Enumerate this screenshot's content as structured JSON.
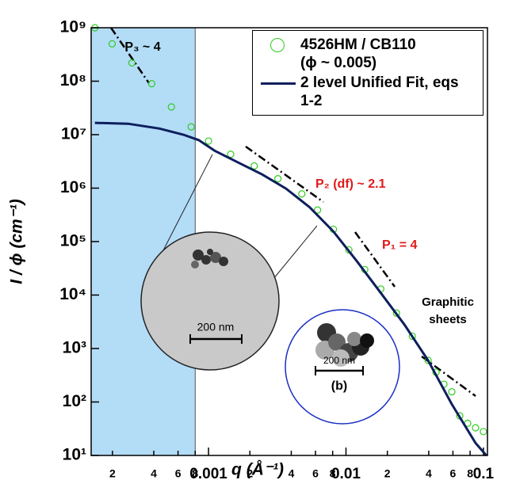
{
  "chart_data": {
    "type": "scatter",
    "x_label": "q (Å⁻¹)",
    "y_label": "I / ϕ (cm⁻¹)",
    "log_x": true,
    "log_y": true,
    "xlim": [
      0.00014,
      0.107
    ],
    "ylim": [
      10,
      1000000000
    ],
    "shade_to": 0.0008,
    "shade_color": "#b3dcf7",
    "legend": "upper right",
    "xticks": [
      {
        "value": 0.0002,
        "label": "2"
      },
      {
        "value": 0.0004,
        "label": "4"
      },
      {
        "value": 0.0006,
        "label": "6"
      },
      {
        "value": 0.0008,
        "label": "8"
      },
      0.001,
      {
        "value": 0.002,
        "label": "2"
      },
      {
        "value": 0.004,
        "label": "4"
      },
      {
        "value": 0.006,
        "label": "6"
      },
      {
        "value": 0.008,
        "label": "8"
      },
      0.01,
      {
        "value": 0.02,
        "label": "2"
      },
      {
        "value": 0.04,
        "label": "4"
      },
      {
        "value": 0.06,
        "label": "6"
      },
      {
        "value": 0.08,
        "label": "8"
      },
      0.1
    ],
    "yticks": [
      {
        "value": 10,
        "label": "10¹"
      },
      {
        "value": 100,
        "label": "10²"
      },
      {
        "value": 1000,
        "label": "10³"
      },
      {
        "value": 10000,
        "label": "10⁴"
      },
      {
        "value": 100000,
        "label": "10⁵"
      },
      {
        "value": 1000000,
        "label": "10⁶"
      },
      {
        "value": 10000000,
        "label": "10⁷"
      },
      {
        "value": 100000000,
        "label": "10⁸"
      },
      {
        "value": 1000000000,
        "label": "10⁹"
      }
    ],
    "series": [
      {
        "name": "4526HM / CB110 (ϕ ~ 0.005)",
        "color": "#2fcc1f",
        "marker": "open-circle",
        "x": [
          0.000149,
          0.000199,
          0.000277,
          0.000386,
          0.000537,
          0.000748,
          0.001,
          0.00145,
          0.00215,
          0.0032,
          0.00477,
          0.00621,
          0.0081,
          0.0105,
          0.0137,
          0.0179,
          0.0233,
          0.0304,
          0.0396,
          0.0452,
          0.0516,
          0.0589,
          0.0673,
          0.0768,
          0.0877,
          0.1
        ],
        "values": [
          1000000000,
          500000000,
          220000000,
          90000000,
          33000000,
          14000000,
          7600000,
          4300000,
          2600000,
          1500000,
          780000,
          390000,
          170000,
          70000,
          30000,
          13000,
          4600,
          1700,
          600,
          360,
          215,
          155,
          55,
          40,
          33,
          28
        ]
      },
      {
        "name": "2 level Unified Fit, eqs 1-2",
        "color": "#0d1f5c",
        "marker": "line",
        "x": [
          0.000149,
          0.00026,
          0.00044,
          0.000655,
          0.00085,
          0.00111,
          0.00165,
          0.00246,
          0.00366,
          0.00544,
          0.0081,
          0.012,
          0.0179,
          0.0266,
          0.0396,
          0.0589,
          0.0877,
          0.105
        ],
        "values": [
          16600000,
          16000000,
          13000000,
          10000000,
          7900000,
          5000000,
          3000000,
          1800000,
          980000,
          440000,
          155000,
          43000,
          11000,
          2800,
          600,
          91,
          17,
          10
        ]
      }
    ],
    "annotations": [
      "P₃ ~ 4",
      "P₂ (df) ~ 2.1",
      "P₁ = 4",
      "Graphitic",
      "sheets",
      "200 nm",
      "200 nm",
      "(b)"
    ]
  }
}
